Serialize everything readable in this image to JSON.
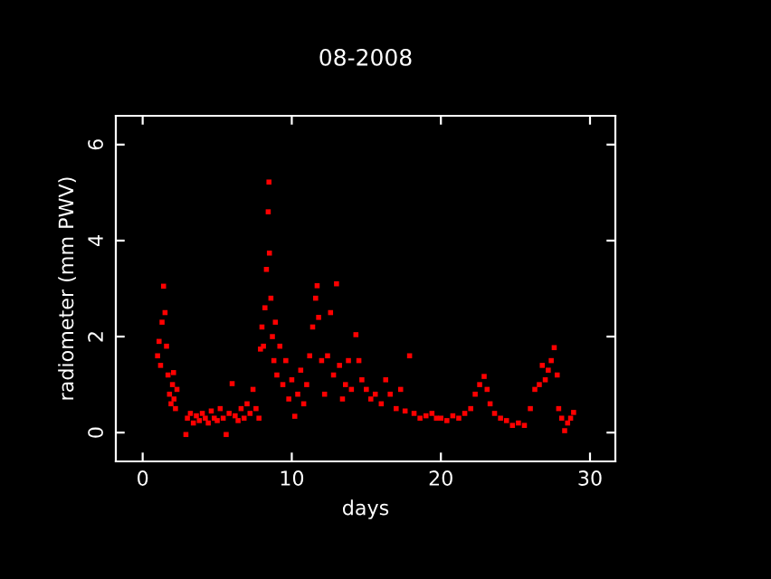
{
  "chart_data": {
    "type": "scatter",
    "title": "08-2008",
    "xlabel": "days",
    "ylabel": "radiometer (mm PWV)",
    "xlim": [
      -1.8,
      31.7
    ],
    "ylim": [
      -0.6,
      6.6
    ],
    "xticks": [
      0,
      10,
      20,
      30
    ],
    "yticks": [
      0,
      2,
      4,
      6
    ],
    "grid": false,
    "legend": false,
    "marker": "square",
    "series": [
      {
        "color": "#ff0000",
        "x": [
          1.0,
          1.1,
          1.2,
          1.3,
          1.4,
          1.5,
          1.6,
          1.7,
          1.8,
          1.9,
          2.0,
          2.07,
          2.1,
          2.2,
          2.3,
          2.9,
          3.0,
          3.2,
          3.4,
          3.6,
          3.8,
          4.0,
          4.2,
          4.4,
          4.6,
          4.8,
          5.0,
          5.2,
          5.4,
          5.6,
          5.8,
          6.0,
          6.2,
          6.4,
          6.6,
          6.8,
          7.0,
          7.2,
          7.4,
          7.6,
          7.8,
          7.9,
          8.0,
          8.1,
          8.2,
          8.3,
          8.42,
          8.47,
          8.5,
          8.6,
          8.7,
          8.8,
          8.9,
          9.0,
          9.2,
          9.4,
          9.6,
          9.8,
          10.0,
          10.2,
          10.4,
          10.6,
          10.8,
          11.0,
          11.2,
          11.4,
          11.6,
          11.7,
          11.8,
          12.0,
          12.2,
          12.4,
          12.6,
          12.8,
          13.0,
          13.2,
          13.4,
          13.6,
          13.8,
          14.0,
          14.3,
          14.5,
          14.7,
          15.0,
          15.3,
          15.6,
          16.0,
          16.3,
          16.6,
          17.0,
          17.3,
          17.6,
          17.9,
          18.2,
          18.6,
          19.0,
          19.4,
          19.7,
          20.0,
          20.4,
          20.8,
          21.2,
          21.6,
          22.0,
          22.3,
          22.6,
          22.9,
          23.1,
          23.3,
          23.6,
          24.0,
          24.4,
          24.8,
          25.2,
          25.6,
          26.0,
          26.3,
          26.6,
          26.8,
          27.0,
          27.2,
          27.4,
          27.6,
          27.8,
          27.9,
          28.1,
          28.3,
          28.5,
          28.7,
          28.9
        ],
        "values": [
          1.6,
          1.9,
          1.4,
          2.3,
          3.05,
          2.5,
          1.8,
          1.2,
          0.8,
          0.6,
          1.0,
          1.25,
          0.7,
          0.5,
          0.9,
          -0.04,
          0.3,
          0.4,
          0.2,
          0.35,
          0.25,
          0.4,
          0.3,
          0.2,
          0.45,
          0.3,
          0.25,
          0.5,
          0.3,
          -0.04,
          0.4,
          1.02,
          0.35,
          0.25,
          0.5,
          0.3,
          0.6,
          0.4,
          0.9,
          0.5,
          0.3,
          1.74,
          2.2,
          1.8,
          2.6,
          3.4,
          4.6,
          5.22,
          3.74,
          2.8,
          2.0,
          1.5,
          2.3,
          1.2,
          1.8,
          1.0,
          1.5,
          0.7,
          1.1,
          0.34,
          0.8,
          1.3,
          0.6,
          1.0,
          1.6,
          2.2,
          2.8,
          3.06,
          2.4,
          1.5,
          0.8,
          1.6,
          2.5,
          1.2,
          3.1,
          1.4,
          0.7,
          1.0,
          1.5,
          0.9,
          2.04,
          1.5,
          1.1,
          0.9,
          0.7,
          0.8,
          0.6,
          1.1,
          0.8,
          0.5,
          0.9,
          0.45,
          1.6,
          0.4,
          0.3,
          0.35,
          0.4,
          0.3,
          0.3,
          0.25,
          0.35,
          0.3,
          0.4,
          0.5,
          0.8,
          1.0,
          1.17,
          0.9,
          0.6,
          0.4,
          0.3,
          0.25,
          0.15,
          0.2,
          0.15,
          0.5,
          0.9,
          1.0,
          1.4,
          1.1,
          1.3,
          1.5,
          1.77,
          1.2,
          0.5,
          0.3,
          0.04,
          0.2,
          0.3,
          0.42
        ]
      }
    ]
  }
}
